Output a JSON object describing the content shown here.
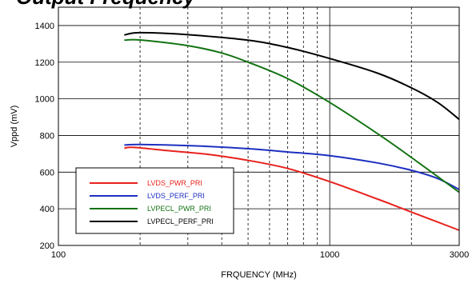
{
  "chart_data": {
    "type": "line",
    "title": "Output Frequency",
    "xlabel": "FRQUENCY (MHz)",
    "ylabel": "Vppd (mV)",
    "xscale": "log",
    "xlim": [
      100,
      3000
    ],
    "ylim": [
      200,
      1500
    ],
    "x_ticks": [
      100,
      1000,
      3000
    ],
    "x_tick_labels": [
      "100",
      "1000",
      "3000"
    ],
    "y_ticks": [
      200,
      400,
      600,
      800,
      1000,
      1200,
      1400
    ],
    "y_tick_labels": [
      "200",
      "400",
      "600",
      "800",
      "1000",
      "1200",
      "1400"
    ],
    "grid": true,
    "legend_position": "bottom-left",
    "series": [
      {
        "name": "LVDS_PWR_PRI",
        "color": "#e8211c",
        "points": [
          [
            175,
            731
          ],
          [
            190,
            735
          ],
          [
            250,
            718
          ],
          [
            350,
            698
          ],
          [
            500,
            664
          ],
          [
            700,
            620
          ],
          [
            1000,
            548
          ],
          [
            1500,
            453
          ],
          [
            2000,
            382
          ],
          [
            3000,
            283
          ]
        ]
      },
      {
        "name": "LVDS_PERF_PRI",
        "color": "#1d2fc0",
        "points": [
          [
            175,
            748
          ],
          [
            200,
            751
          ],
          [
            300,
            745
          ],
          [
            500,
            728
          ],
          [
            700,
            710
          ],
          [
            1000,
            690
          ],
          [
            1500,
            650
          ],
          [
            2000,
            610
          ],
          [
            2500,
            565
          ],
          [
            3000,
            505
          ]
        ]
      },
      {
        "name": "LVPECL_PWR_PRI",
        "color": "#137313",
        "points": [
          [
            175,
            1320
          ],
          [
            200,
            1321
          ],
          [
            300,
            1290
          ],
          [
            400,
            1250
          ],
          [
            500,
            1200
          ],
          [
            700,
            1110
          ],
          [
            1000,
            980
          ],
          [
            1500,
            810
          ],
          [
            2000,
            680
          ],
          [
            3000,
            490
          ]
        ]
      },
      {
        "name": "LVPECL_PERF_PRI",
        "color": "#000000",
        "points": [
          [
            175,
            1348
          ],
          [
            200,
            1361
          ],
          [
            300,
            1350
          ],
          [
            500,
            1320
          ],
          [
            700,
            1280
          ],
          [
            1000,
            1220
          ],
          [
            1500,
            1140
          ],
          [
            2000,
            1060
          ],
          [
            2500,
            980
          ],
          [
            3000,
            888
          ]
        ]
      }
    ]
  }
}
